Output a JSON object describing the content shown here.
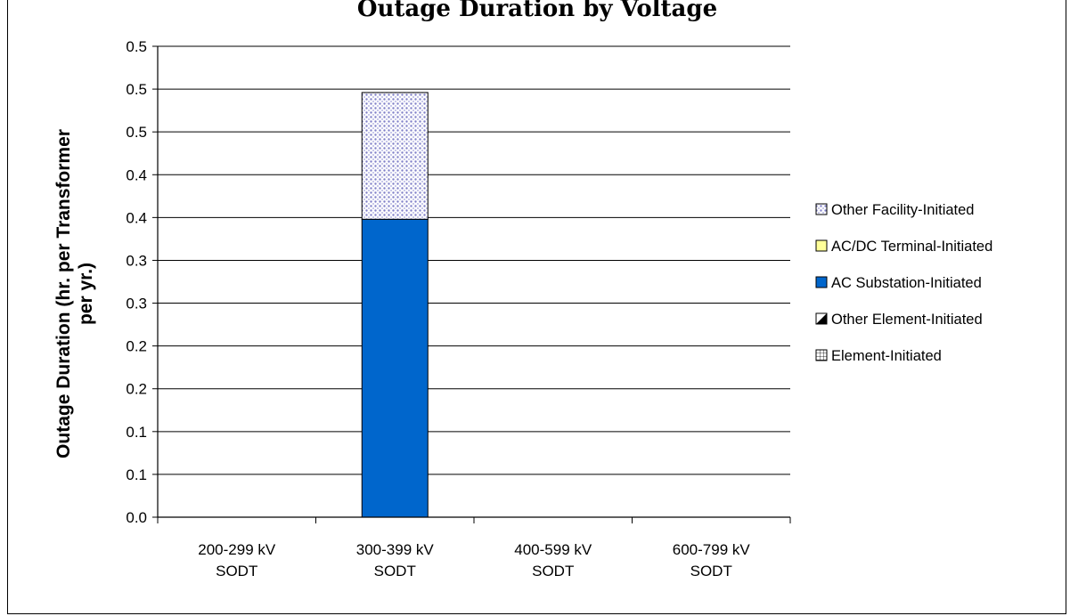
{
  "chart_data": {
    "type": "bar",
    "stacked": true,
    "title": "Outage Duration by Voltage",
    "ylabel": "Outage Duration (hr. per Transformer per yr.)",
    "ylabel_lines": [
      "Outage Duration (hr. per Transformer",
      "per  yr.)"
    ],
    "xlabel": "",
    "categories": [
      [
        "200-299 kV",
        "SODT"
      ],
      [
        "300-399 kV",
        "SODT"
      ],
      [
        "400-599 kV",
        "SODT"
      ],
      [
        "600-799 kV",
        "SODT"
      ]
    ],
    "ylim": [
      0,
      0.55
    ],
    "yticks": [
      0.0,
      0.05,
      0.1,
      0.15,
      0.2,
      0.25,
      0.3,
      0.35,
      0.4,
      0.45,
      0.5,
      0.55
    ],
    "ytick_labels": [
      "0.0",
      "0.1",
      "0.1",
      "0.2",
      "0.2",
      "0.3",
      "0.3",
      "0.4",
      "0.4",
      "0.5",
      "0.5",
      "0.5"
    ],
    "grid": true,
    "legend_position": "right",
    "series": [
      {
        "name": "Element-Initiated",
        "values": [
          0,
          0,
          0,
          0
        ],
        "color": "#ffffff",
        "pattern": "grid"
      },
      {
        "name": "Other Element-Initiated",
        "values": [
          0,
          0,
          0,
          0
        ],
        "color": "#000000",
        "pattern": "diagonal-half"
      },
      {
        "name": "AC Substation-Initiated",
        "values": [
          0,
          0.348,
          0,
          0
        ],
        "color": "#0066cc",
        "pattern": "solid"
      },
      {
        "name": "AC/DC Terminal-Initiated",
        "values": [
          0,
          0,
          0,
          0
        ],
        "color": "#ffff99",
        "pattern": "solid"
      },
      {
        "name": "Other Facility-Initiated",
        "values": [
          0,
          0.148,
          0,
          0
        ],
        "color": "#c8c8f0",
        "pattern": "dots"
      }
    ],
    "legend_order": [
      "Other Facility-Initiated",
      "AC/DC Terminal-Initiated",
      "AC Substation-Initiated",
      "Other Element-Initiated",
      "Element-Initiated"
    ]
  }
}
